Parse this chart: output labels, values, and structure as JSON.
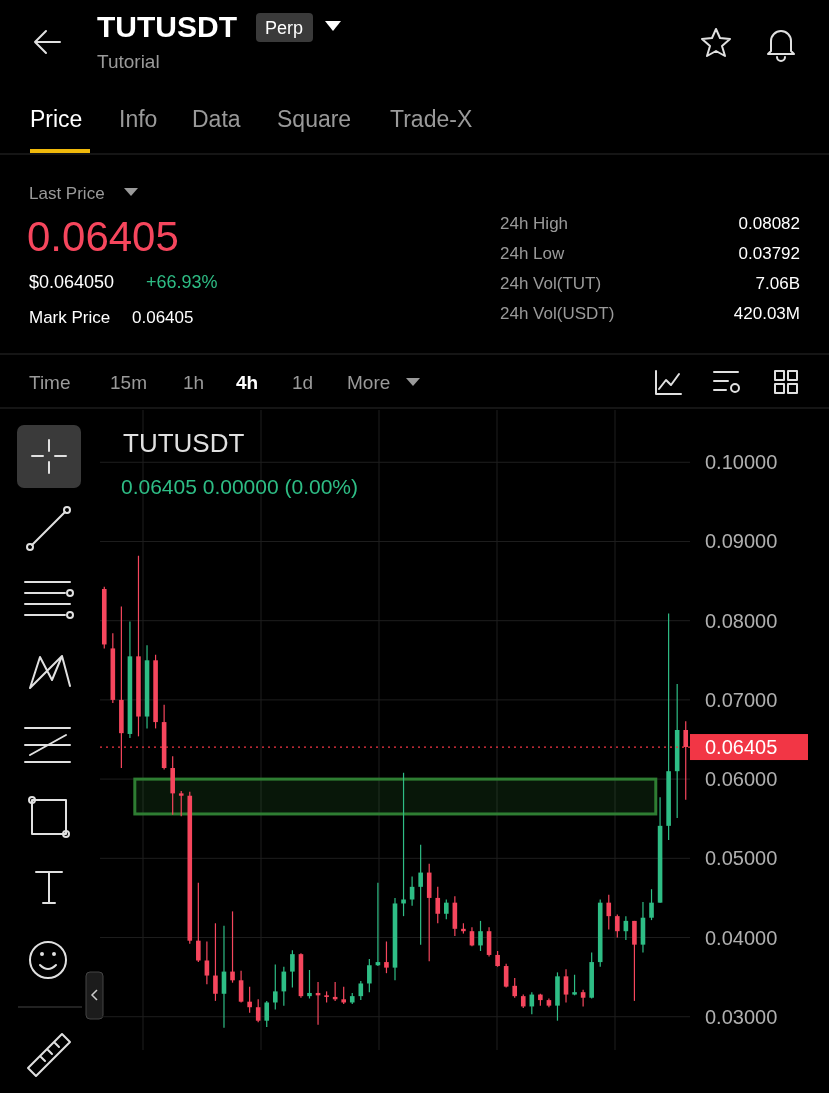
{
  "chart_data": {
    "type": "candlestick",
    "title": "TUTUSDT",
    "subtitle": "0.06405  0.00000 (0.00%)",
    "annotations": [
      "TUTUSDT",
      "Perp",
      "Tutorial",
      "Price",
      "Info",
      "Data",
      "Square",
      "Trade-X",
      "Last Price",
      "0.06405",
      "$0.064050",
      "+66.93%",
      "Mark Price",
      "0.06405",
      "24h High",
      "0.08082",
      "24h Low",
      "0.03792",
      "24h Vol(TUT)",
      "7.06B",
      "24h Vol(USDT)",
      "420.03M",
      "Time",
      "15m",
      "1h",
      "4h",
      "1d",
      "More"
    ],
    "categories": [
      null,
      null,
      null,
      null,
      null,
      null,
      null,
      null,
      null,
      null,
      null,
      null,
      null,
      null,
      null,
      null,
      null,
      null,
      null,
      null,
      null,
      null,
      null,
      null,
      null,
      null,
      null,
      null,
      null,
      null,
      null,
      null,
      null,
      null,
      null,
      null,
      null,
      null,
      null,
      null,
      null,
      null,
      null,
      null,
      null,
      null,
      null,
      null,
      null,
      null,
      null,
      null,
      null,
      null,
      null,
      null,
      null,
      null,
      null,
      null,
      null,
      null,
      null,
      null,
      null,
      null,
      null,
      null,
      null
    ],
    "ohlc": [
      [
        0.084,
        0.0843,
        0.0765,
        0.077
      ],
      [
        0.0765,
        0.0784,
        0.0696,
        0.07
      ],
      [
        0.07,
        0.0818,
        0.0614,
        0.0658
      ],
      [
        0.0657,
        0.0799,
        0.0652,
        0.0755
      ],
      [
        0.0755,
        0.0882,
        0.0654,
        0.0679
      ],
      [
        0.0679,
        0.0769,
        0.0664,
        0.075
      ],
      [
        0.075,
        0.0757,
        0.0664,
        0.0672
      ],
      [
        0.0672,
        0.0694,
        0.0612,
        0.0614
      ],
      [
        0.0614,
        0.0629,
        0.0555,
        0.0582
      ],
      [
        0.0582,
        0.0585,
        0.0553,
        0.0579
      ],
      [
        0.0579,
        0.0584,
        0.0392,
        0.0396
      ],
      [
        0.0396,
        0.0469,
        0.0369,
        0.0371
      ],
      [
        0.0371,
        0.0395,
        0.0341,
        0.0352
      ],
      [
        0.0352,
        0.0418,
        0.032,
        0.0329
      ],
      [
        0.0329,
        0.0415,
        0.0286,
        0.0357
      ],
      [
        0.0357,
        0.0433,
        0.0343,
        0.0346
      ],
      [
        0.0346,
        0.0358,
        0.0318,
        0.0319
      ],
      [
        0.0319,
        0.0338,
        0.0305,
        0.0312
      ],
      [
        0.0312,
        0.0322,
        0.0293,
        0.0295
      ],
      [
        0.0295,
        0.032,
        0.0287,
        0.0318
      ],
      [
        0.0318,
        0.0366,
        0.0309,
        0.0332
      ],
      [
        0.0332,
        0.0363,
        0.0314,
        0.0357
      ],
      [
        0.0357,
        0.0384,
        0.0337,
        0.0379
      ],
      [
        0.0379,
        0.038,
        0.0324,
        0.0326
      ],
      [
        0.0326,
        0.0359,
        0.0323,
        0.033
      ],
      [
        0.033,
        0.0344,
        0.029,
        0.0327
      ],
      [
        0.0327,
        0.0332,
        0.0318,
        0.0325
      ],
      [
        0.0325,
        0.0344,
        0.032,
        0.0322
      ],
      [
        0.0322,
        0.0338,
        0.0316,
        0.0318
      ],
      [
        0.0318,
        0.033,
        0.0316,
        0.0326
      ],
      [
        0.0326,
        0.0345,
        0.0321,
        0.0342
      ],
      [
        0.0342,
        0.0373,
        0.0331,
        0.0365
      ],
      [
        0.0365,
        0.0469,
        0.0364,
        0.0369
      ],
      [
        0.0369,
        0.0395,
        0.0355,
        0.0362
      ],
      [
        0.0362,
        0.045,
        0.0346,
        0.0443
      ],
      [
        0.0443,
        0.0608,
        0.0427,
        0.0448
      ],
      [
        0.0448,
        0.0477,
        0.044,
        0.0464
      ],
      [
        0.0464,
        0.0517,
        0.0391,
        0.0482
      ],
      [
        0.0482,
        0.0493,
        0.037,
        0.045
      ],
      [
        0.045,
        0.0464,
        0.0418,
        0.043
      ],
      [
        0.043,
        0.0448,
        0.0423,
        0.0444
      ],
      [
        0.0444,
        0.0452,
        0.0402,
        0.0411
      ],
      [
        0.0411,
        0.0418,
        0.0405,
        0.0408
      ],
      [
        0.0408,
        0.0413,
        0.0389,
        0.039
      ],
      [
        0.039,
        0.0421,
        0.0383,
        0.0408
      ],
      [
        0.0408,
        0.0413,
        0.0376,
        0.0378
      ],
      [
        0.0378,
        0.0383,
        0.0363,
        0.0364
      ],
      [
        0.0364,
        0.0367,
        0.0337,
        0.0338
      ],
      [
        0.0339,
        0.0349,
        0.0324,
        0.0326
      ],
      [
        0.0326,
        0.0328,
        0.0311,
        0.0313
      ],
      [
        0.0313,
        0.0331,
        0.0303,
        0.0328
      ],
      [
        0.0328,
        0.0329,
        0.0314,
        0.0321
      ],
      [
        0.0321,
        0.0323,
        0.0312,
        0.0314
      ],
      [
        0.0314,
        0.0356,
        0.0295,
        0.0351
      ],
      [
        0.0351,
        0.036,
        0.0318,
        0.0328
      ],
      [
        0.0328,
        0.0353,
        0.0327,
        0.0331
      ],
      [
        0.0331,
        0.0334,
        0.0313,
        0.0324
      ],
      [
        0.0324,
        0.0381,
        0.0323,
        0.0369
      ],
      [
        0.0369,
        0.0448,
        0.0363,
        0.0444
      ],
      [
        0.0444,
        0.0454,
        0.041,
        0.0427
      ],
      [
        0.0427,
        0.0429,
        0.04,
        0.0408
      ],
      [
        0.0408,
        0.0427,
        0.0397,
        0.0421
      ],
      [
        0.0421,
        0.0421,
        0.032,
        0.0391
      ],
      [
        0.0391,
        0.0445,
        0.0381,
        0.0425
      ],
      [
        0.0425,
        0.0461,
        0.0422,
        0.0444
      ],
      [
        0.0444,
        0.0577,
        0.0444,
        0.0541
      ],
      [
        0.0541,
        0.0809,
        0.0523,
        0.061
      ],
      [
        0.061,
        0.072,
        0.0551,
        0.0662
      ],
      [
        0.0662,
        0.0673,
        0.0574,
        0.06405
      ]
    ],
    "ylim": [
      0.0258,
      0.1066
    ],
    "yticks": [
      {
        "value": 0.03,
        "label": "0.03000"
      },
      {
        "value": 0.04,
        "label": "0.04000"
      },
      {
        "value": 0.05,
        "label": "0.05000"
      },
      {
        "value": 0.06,
        "label": "0.06000"
      },
      {
        "value": 0.07,
        "label": "0.07000"
      },
      {
        "value": 0.08,
        "label": "0.08000"
      },
      {
        "value": 0.09,
        "label": "0.09000"
      },
      {
        "value": 0.1,
        "label": "0.10000"
      }
    ],
    "ref_lines": [
      {
        "axis": "y",
        "value": 0.06405,
        "label": "0.06405",
        "color": "#f23645",
        "line_style": "dotted"
      }
    ],
    "bands": [
      {
        "axis": "y",
        "from": 0.0556,
        "to": 0.06,
        "color": "#2e7d32"
      }
    ],
    "grid": true
  }
}
